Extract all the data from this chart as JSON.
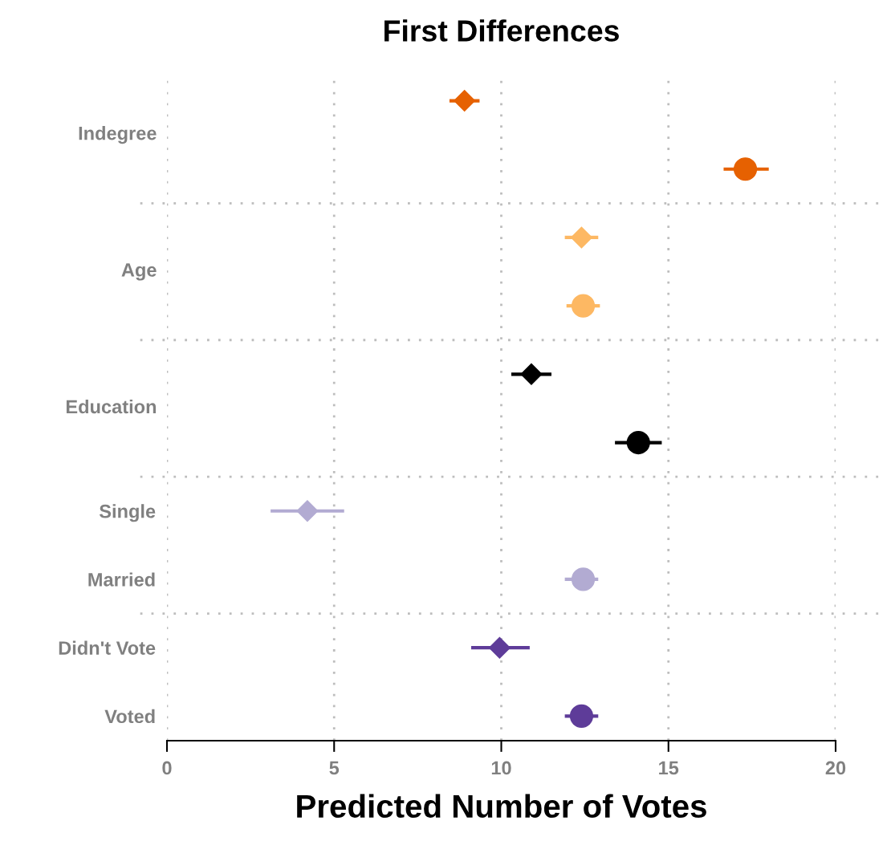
{
  "chart_data": {
    "type": "scatter",
    "orientation": "horizontal",
    "title": "First Differences",
    "xlabel": "Predicted Number of Votes",
    "categories": [
      null,
      null,
      null,
      null,
      null,
      null,
      "Single",
      "Married",
      "Didn't Vote",
      "Voted"
    ],
    "annotations": [
      "Indegree",
      "Age",
      "Education"
    ],
    "series": [
      {
        "marker": "diamond",
        "colors": [
          "#e66101",
          null,
          "#fdb863",
          null,
          "#000000",
          null,
          "#b2abd2",
          null,
          "#5e3c99",
          null
        ],
        "values": [
          8.9,
          null,
          12.4,
          null,
          10.9,
          null,
          4.2,
          null,
          9.95,
          null
        ],
        "errors": [
          [
            8.45,
            9.35
          ],
          null,
          [
            11.9,
            12.9
          ],
          null,
          [
            10.3,
            11.5
          ],
          null,
          [
            3.1,
            5.3
          ],
          null,
          [
            9.1,
            10.85
          ],
          null
        ]
      },
      {
        "marker": "circle",
        "colors": [
          null,
          "#e66101",
          null,
          "#fdb863",
          null,
          "#000000",
          null,
          "#b2abd2",
          null,
          "#5e3c99"
        ],
        "values": [
          null,
          17.3,
          null,
          12.45,
          null,
          14.1,
          null,
          12.45,
          null,
          12.4
        ],
        "errors": [
          null,
          [
            16.65,
            18.0
          ],
          null,
          [
            11.95,
            12.95
          ],
          null,
          [
            13.4,
            14.8
          ],
          null,
          [
            11.9,
            12.9
          ],
          null,
          [
            11.9,
            12.9
          ]
        ]
      }
    ],
    "xlim": [
      0,
      20
    ],
    "xticks": [
      0,
      5,
      10,
      15,
      20
    ],
    "grid": "x"
  }
}
